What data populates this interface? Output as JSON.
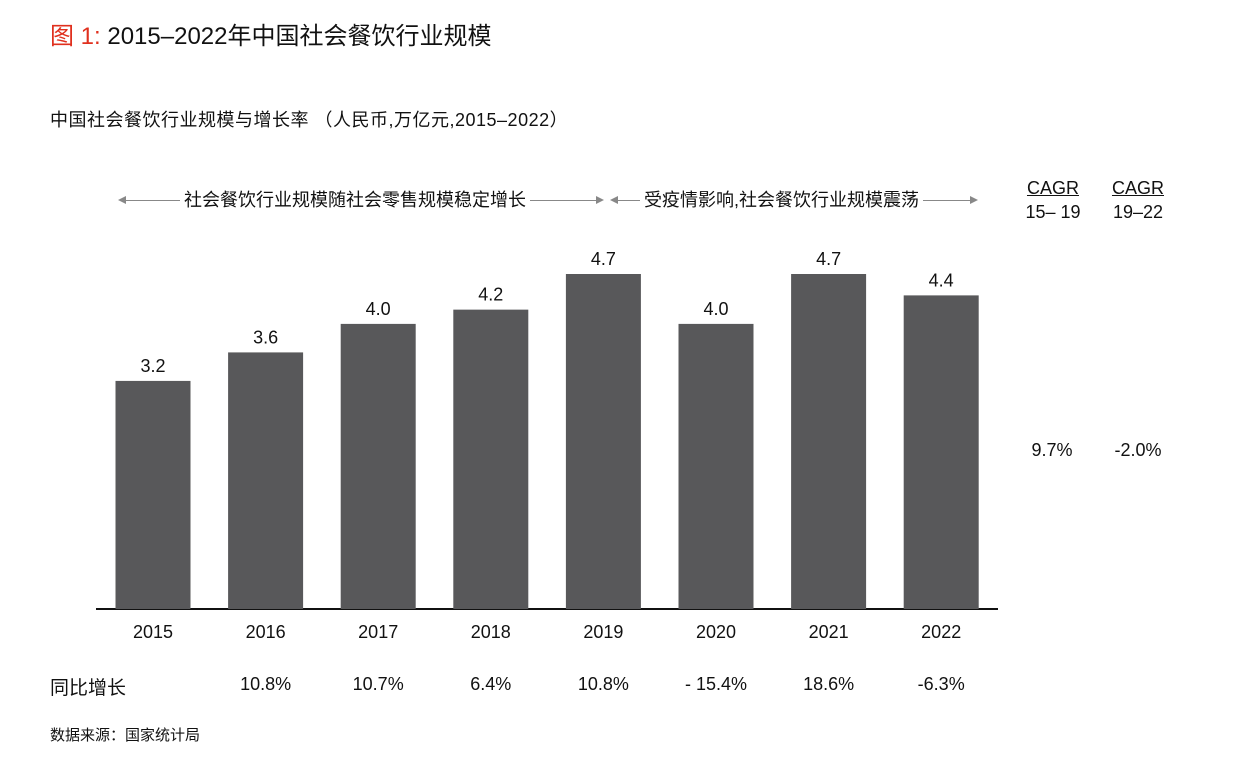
{
  "figure": {
    "label": "图 1:",
    "title": "2015–2022年中国社会餐饮行业规模"
  },
  "subtitle": "中国社会餐饮行业规模与增长率 （人民币,万亿元,2015–2022）",
  "periods": [
    {
      "text": "社会餐饮行业规模随社会零售规模稳定增长"
    },
    {
      "text": "受疫情影响,社会餐饮行业规模震荡"
    }
  ],
  "cagr": [
    {
      "header": "CAGR",
      "range": "15– 19",
      "value": "9.7%"
    },
    {
      "header": "CAGR",
      "range": "19–22",
      "value": "-2.0%"
    }
  ],
  "growth": {
    "label": "同比增长",
    "values": [
      "10.8%",
      "10.7%",
      "6.4%",
      "10.8%",
      "- 15.4%",
      "18.6%",
      "-6.3%"
    ]
  },
  "source": "数据来源：国家统计局",
  "chart_data": {
    "type": "bar",
    "categories": [
      "2015",
      "2016",
      "2017",
      "2018",
      "2019",
      "2020",
      "2021",
      "2022"
    ],
    "values": [
      3.2,
      3.6,
      4.0,
      4.2,
      4.7,
      4.0,
      4.7,
      4.4
    ],
    "data_labels": [
      "3.2",
      "3.6",
      "4.0",
      "4.2",
      "4.7",
      "4.0",
      "4.7",
      "4.4"
    ],
    "title": "",
    "xlabel": "",
    "ylabel": "",
    "ylim": [
      0,
      4.7
    ],
    "grid": false,
    "bar_color": "#58585a"
  }
}
